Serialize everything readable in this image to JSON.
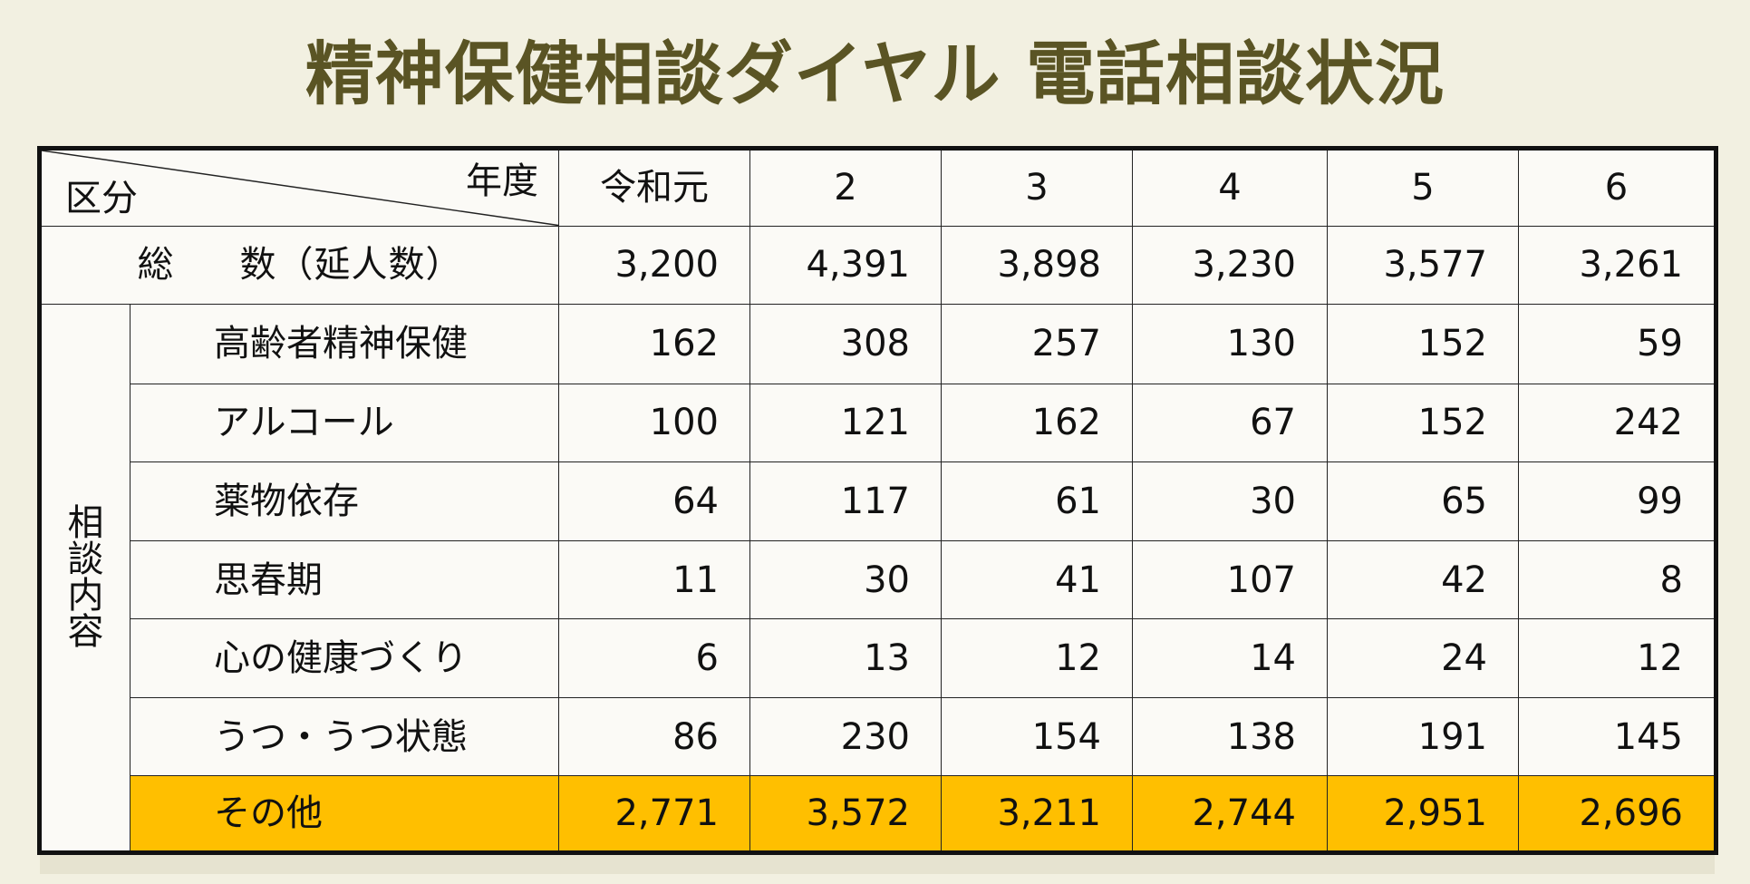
{
  "title": "精神保健相談ダイヤル 電話相談状況",
  "table": {
    "header": {
      "corner_year_label": "年度",
      "corner_category_label": "区分",
      "years": [
        "令和元",
        "2",
        "3",
        "4",
        "5",
        "6"
      ]
    },
    "total": {
      "label_left": "総",
      "label_right": "数（延人数）",
      "values": [
        "3,200",
        "4,391",
        "3,898",
        "3,230",
        "3,577",
        "3,261"
      ]
    },
    "group_label": [
      "相",
      "談",
      "内",
      "容"
    ],
    "rows": [
      {
        "label": "高齢者精神保健",
        "values": [
          "162",
          "308",
          "257",
          "130",
          "152",
          "59"
        ]
      },
      {
        "label": "アルコール",
        "values": [
          "100",
          "121",
          "162",
          "67",
          "152",
          "242"
        ]
      },
      {
        "label": "薬物依存",
        "values": [
          "64",
          "117",
          "61",
          "30",
          "65",
          "99"
        ]
      },
      {
        "label": "思春期",
        "values": [
          "11",
          "30",
          "41",
          "107",
          "42",
          "8"
        ]
      },
      {
        "label": "心の健康づくり",
        "values": [
          "6",
          "13",
          "12",
          "14",
          "24",
          "12"
        ]
      },
      {
        "label": "うつ・うつ状態",
        "values": [
          "86",
          "230",
          "154",
          "138",
          "191",
          "145"
        ]
      },
      {
        "label": "その他",
        "values": [
          "2,771",
          "3,572",
          "3,211",
          "2,744",
          "2,951",
          "2,696"
        ],
        "highlight": true
      }
    ],
    "highlight_color": "#ffbf00"
  },
  "chart_data": {
    "type": "table",
    "title": "精神保健相談ダイヤル 電話相談状況",
    "columns": [
      "令和元",
      "2",
      "3",
      "4",
      "5",
      "6"
    ],
    "row_header": "区分",
    "column_header": "年度",
    "total": {
      "name": "総 数（延人数）",
      "values": [
        3200,
        4391,
        3898,
        3230,
        3577,
        3261
      ]
    },
    "group": "相談内容",
    "series": [
      {
        "name": "高齢者精神保健",
        "values": [
          162,
          308,
          257,
          130,
          152,
          59
        ]
      },
      {
        "name": "アルコール",
        "values": [
          100,
          121,
          162,
          67,
          152,
          242
        ]
      },
      {
        "name": "薬物依存",
        "values": [
          64,
          117,
          61,
          30,
          65,
          99
        ]
      },
      {
        "name": "思春期",
        "values": [
          11,
          30,
          41,
          107,
          42,
          8
        ]
      },
      {
        "name": "心の健康づくり",
        "values": [
          6,
          13,
          12,
          14,
          24,
          12
        ]
      },
      {
        "name": "うつ・うつ状態",
        "values": [
          86,
          230,
          154,
          138,
          191,
          145
        ]
      },
      {
        "name": "その他",
        "values": [
          2771,
          3572,
          3211,
          2744,
          2951,
          2696
        ]
      }
    ]
  }
}
